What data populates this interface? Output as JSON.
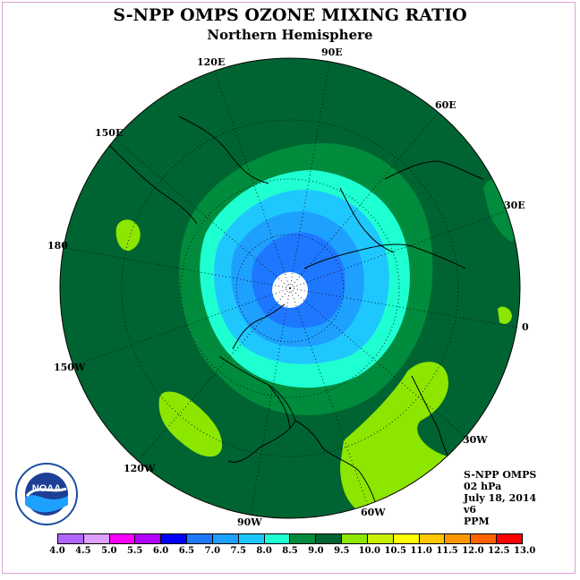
{
  "title": "S-NPP OMPS OZONE MIXING RATIO",
  "subtitle": "Northern Hemisphere",
  "longitude_labels": [
    "90E",
    "120E",
    "60E",
    "150E",
    "30E",
    "180",
    "0",
    "150W",
    "30W",
    "120W",
    "60W",
    "90W"
  ],
  "info": {
    "line1": "S-NPP OMPS",
    "line2": "02 hPa",
    "line3": "July 18, 2014",
    "line4": "v6",
    "line5": "PPM"
  },
  "logo": {
    "text": "NOAA",
    "ring_text": "NATIONAL OCEANIC AND ATMOSPHERIC ADMINISTRATION · U.S. DEPARTMENT OF COMMERCE"
  },
  "colorbar": {
    "ticks": [
      "4.0",
      "4.5",
      "5.0",
      "5.5",
      "6.0",
      "6.5",
      "7.0",
      "7.5",
      "8.0",
      "8.5",
      "9.0",
      "9.5",
      "10.0",
      "10.5",
      "11.0",
      "11.5",
      "12.0",
      "12.5",
      "13.0"
    ],
    "colors": [
      "#b266ff",
      "#dda0ff",
      "#ff00ff",
      "#b000ff",
      "#0000ff",
      "#1e78ff",
      "#1ea0ff",
      "#1ec8ff",
      "#1effd2",
      "#008c3c",
      "#006432",
      "#8ce600",
      "#c8f000",
      "#ffff00",
      "#ffc800",
      "#ff9600",
      "#ff6400",
      "#ff0000",
      "#8b5a2b"
    ]
  },
  "map": {
    "projection": "north polar stereographic",
    "field_colors": {
      "outer": "#006432",
      "band_8_5": "#008c3c",
      "band_8_0": "#1effd2",
      "band_7_5": "#1ec8ff",
      "band_7_0": "#1ea0ff",
      "band_6_5": "#1e78ff",
      "high_9_5": "#8ce600",
      "high_10": "#c8f000",
      "missing": "#ffffff"
    }
  }
}
